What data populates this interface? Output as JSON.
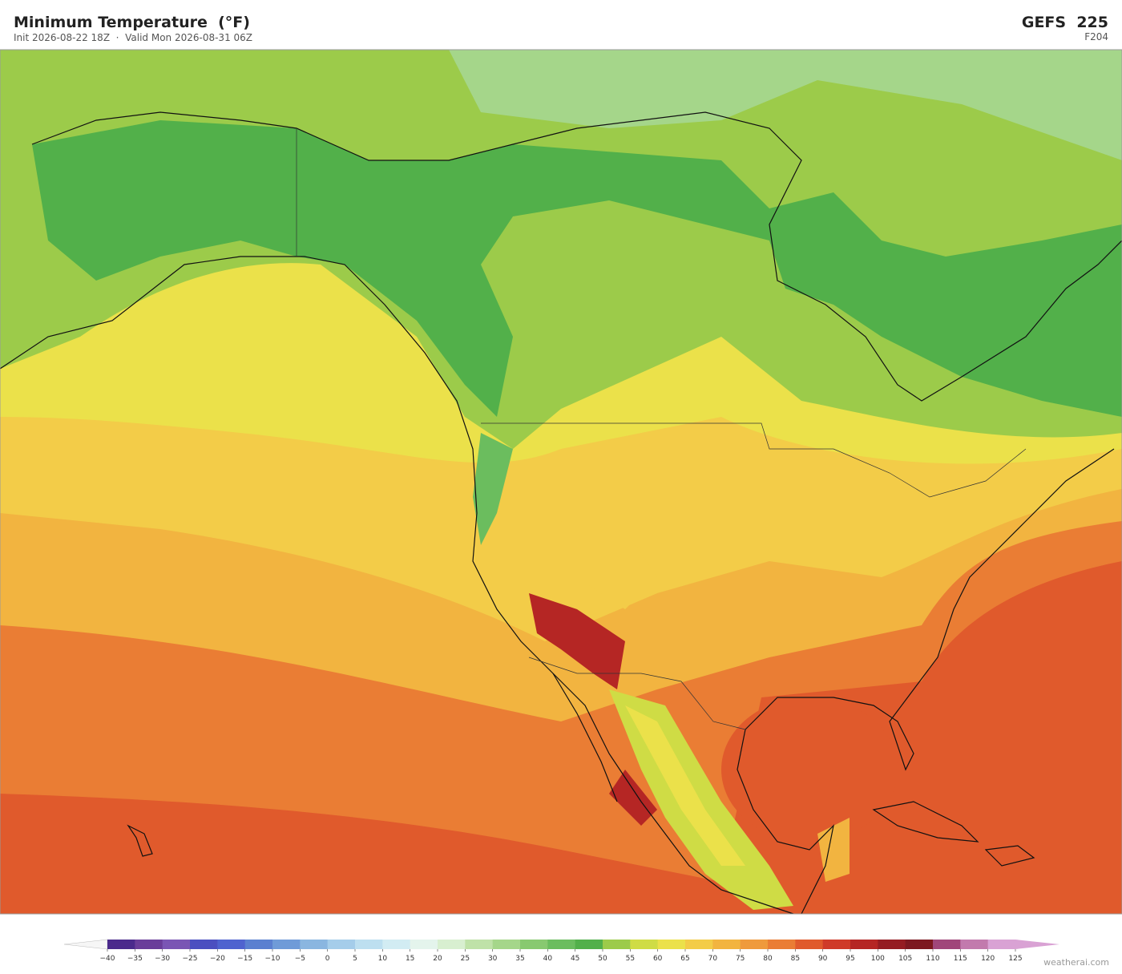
{
  "header": {
    "title": "Minimum Temperature  (°F)",
    "subtitle": "Init 2026-08-22 18Z  ·  Valid Mon 2026-08-31 06Z",
    "model": "GEFS  225",
    "forecast_hour": "F204"
  },
  "colorbar": {
    "ticks": [
      "−40",
      "−35",
      "−30",
      "−25",
      "−20",
      "−15",
      "−10",
      "−5",
      "0",
      "5",
      "10",
      "15",
      "20",
      "25",
      "30",
      "35",
      "40",
      "45",
      "50",
      "55",
      "60",
      "65",
      "70",
      "75",
      "80",
      "85",
      "90",
      "95",
      "100",
      "105",
      "110",
      "115",
      "120",
      "125"
    ],
    "colors": [
      "#4b2a8c",
      "#6a3d9a",
      "#7a55b4",
      "#4b4fc0",
      "#4f63cf",
      "#5b80d0",
      "#6f9bd8",
      "#8ab6e0",
      "#a5cdea",
      "#bddff0",
      "#d2ecf3",
      "#e4f4ec",
      "#d8efd0",
      "#bfe2a8",
      "#a5d68a",
      "#88c970",
      "#6bbd5e",
      "#52b04a",
      "#9ccb4a",
      "#cfdc45",
      "#ebe14a",
      "#f3cc48",
      "#f2b440",
      "#ef9a3c",
      "#ea7d34",
      "#e05a2c",
      "#cf3a28",
      "#b52624",
      "#951c22",
      "#7d1820",
      "#a0467a",
      "#c27aad",
      "#d9a2d4"
    ],
    "extend_colors": [
      "#f6f6f6",
      "#d9a2d4"
    ]
  },
  "footer": {
    "watermark": "weatherai.com"
  }
}
